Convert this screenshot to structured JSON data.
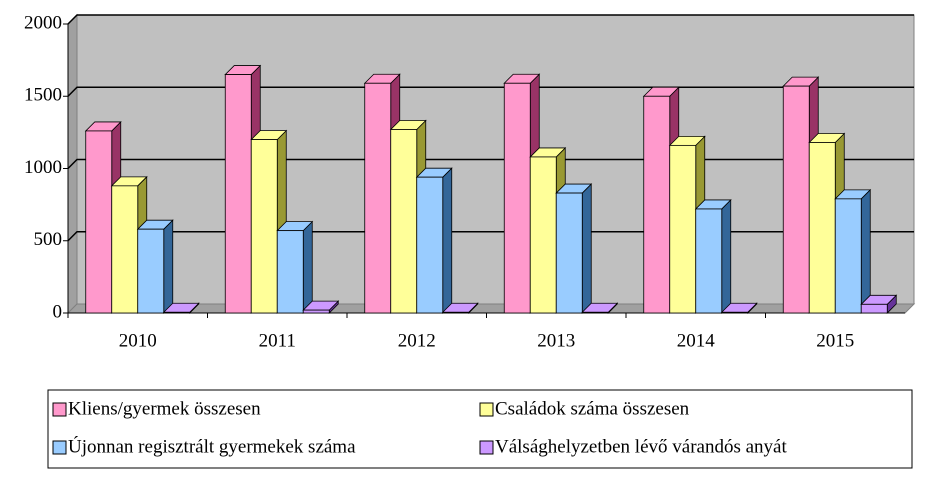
{
  "chart_data": {
    "type": "bar",
    "categories": [
      "2010",
      "2011",
      "2012",
      "2013",
      "2014",
      "2015"
    ],
    "series": [
      {
        "name": "Kliens/gyermek összesen",
        "color": "#ff99cc",
        "side": "#993366",
        "values": [
          1260,
          1650,
          1590,
          1590,
          1500,
          1570
        ]
      },
      {
        "name": "Családok száma összesen",
        "color": "#ffff99",
        "side": "#999933",
        "values": [
          880,
          1200,
          1270,
          1080,
          1160,
          1180
        ]
      },
      {
        "name": "Újonnan regisztrált gyermekek száma",
        "color": "#99ccff",
        "side": "#336699",
        "values": [
          580,
          570,
          940,
          830,
          720,
          790
        ]
      },
      {
        "name": "Válsághelyzetben lévő várandós anyát",
        "color": "#cc99ff",
        "side": "#663399",
        "values": [
          5,
          20,
          5,
          5,
          5,
          60
        ]
      }
    ],
    "ylim": [
      0,
      2000
    ],
    "yticks": [
      0,
      500,
      1000,
      1500,
      2000
    ],
    "grid": true,
    "legend": "bottom"
  }
}
